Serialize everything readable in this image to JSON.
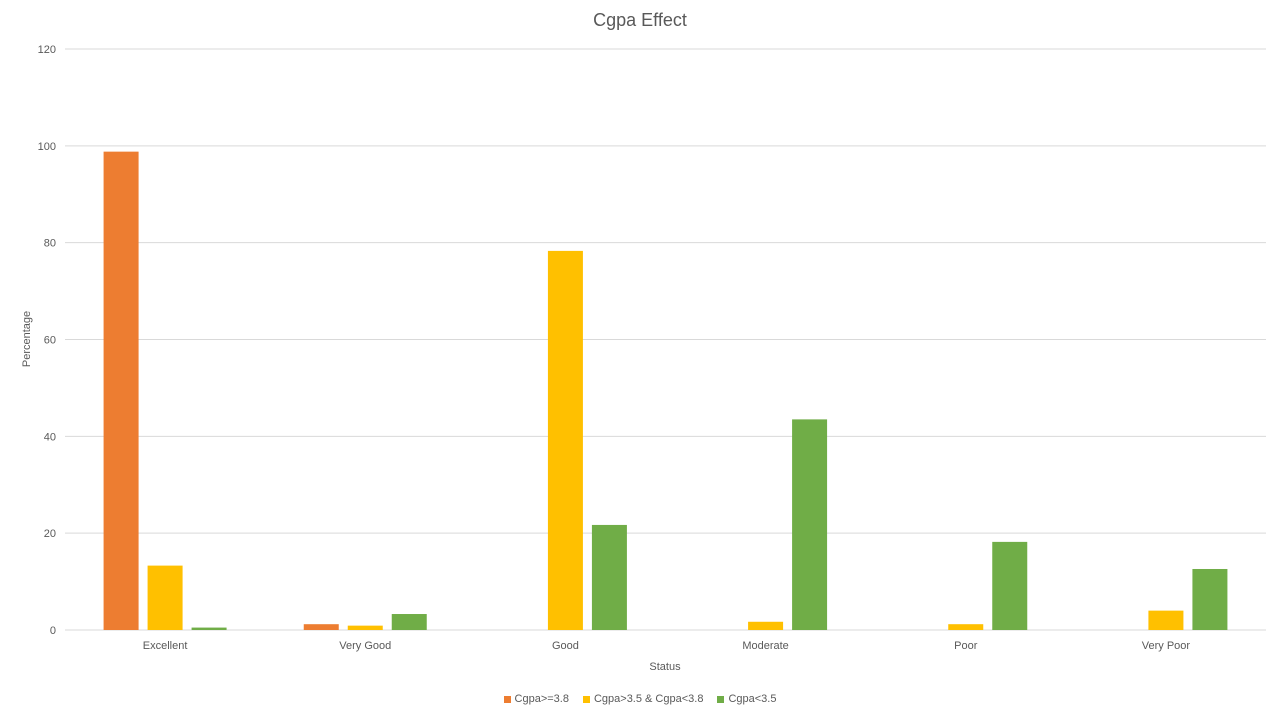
{
  "chart_data": {
    "type": "bar",
    "title": "Cgpa Effect",
    "xlabel": "Status",
    "ylabel": "Percentage",
    "categories": [
      "Excellent",
      "Very Good",
      "Good",
      "Moderate",
      "Poor",
      "Very Poor"
    ],
    "ylim": [
      0,
      120
    ],
    "yticks": [
      0,
      20,
      40,
      60,
      80,
      100,
      120
    ],
    "grid": true,
    "legend_position": "bottom",
    "series": [
      {
        "name": "Cgpa>=3.8",
        "color": "#ED7D31",
        "values": [
          98.8,
          1.2,
          0,
          0,
          0,
          0
        ]
      },
      {
        "name": "Cgpa>3.5 & Cgpa<3.8",
        "color": "#FFC000",
        "values": [
          13.3,
          0.9,
          78.3,
          1.7,
          1.2,
          4.0
        ]
      },
      {
        "name": "Cgpa<3.5",
        "color": "#70AD47",
        "values": [
          0.5,
          3.3,
          21.7,
          43.5,
          18.2,
          12.6
        ]
      }
    ]
  }
}
